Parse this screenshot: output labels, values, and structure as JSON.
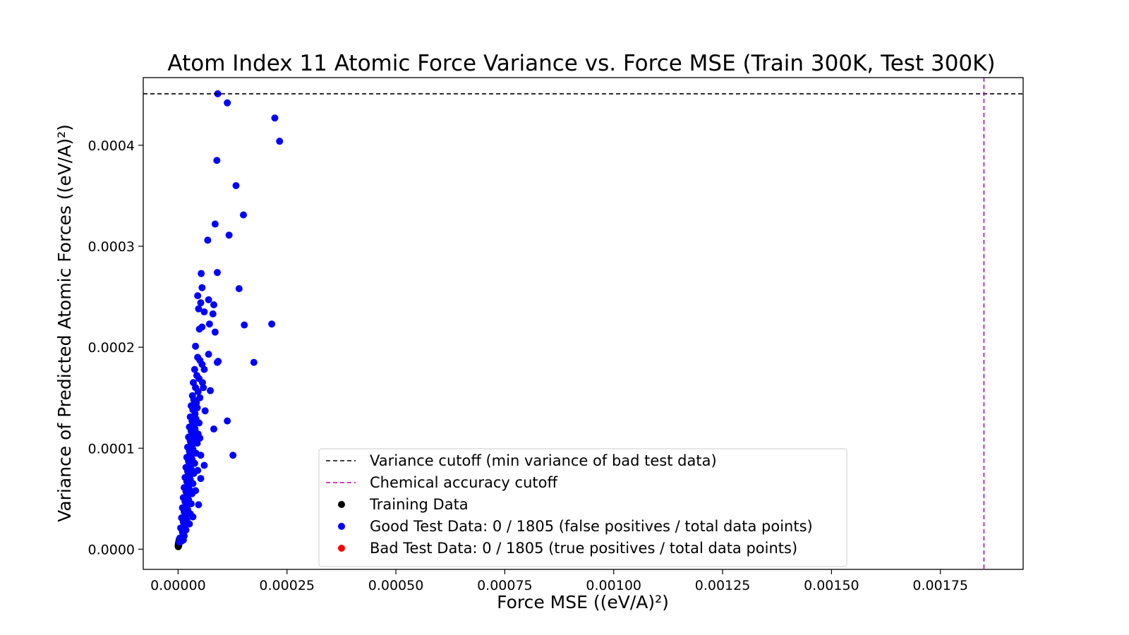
{
  "chart_data": {
    "type": "scatter",
    "title": "Atom Index 11 Atomic Force Variance vs. Force MSE (Train 300K, Test 300K)",
    "xlabel": "Force MSE ((eV/A)²)",
    "ylabel": "Variance of Predicted Atomic Forces ((eV/A)²)",
    "xlim": [
      -8e-05,
      0.00194
    ],
    "ylim": [
      -2e-05,
      0.000467
    ],
    "x_ticks": [
      0.0,
      0.00025,
      0.0005,
      0.00075,
      0.001,
      0.00125,
      0.0015,
      0.00175
    ],
    "x_tick_labels": [
      "0.00000",
      "0.00025",
      "0.00050",
      "0.00075",
      "0.00100",
      "0.00125",
      "0.00150",
      "0.00175"
    ],
    "y_ticks": [
      0.0,
      0.0001,
      0.0002,
      0.0003,
      0.0004
    ],
    "y_tick_labels": [
      "0.0000",
      "0.0001",
      "0.0002",
      "0.0003",
      "0.0004"
    ],
    "grid": false,
    "legend_position": "lower-center",
    "reference_lines": [
      {
        "orientation": "horizontal",
        "value": 0.000451,
        "color": "#000000",
        "style": "dashed",
        "label": "Variance cutoff (min variance of bad test data)"
      },
      {
        "orientation": "vertical",
        "value": 0.00185,
        "color": "#bf00bf",
        "style": "dashed",
        "label": "Chemical accuracy cutoff"
      }
    ],
    "series": [
      {
        "name": "Training Data",
        "color": "#000000",
        "points": [
          [
            2e-07,
            3e-06
          ],
          [
            4e-07,
            4.2e-06
          ],
          [
            6e-07,
            5e-06
          ],
          [
            8e-07,
            3.6e-06
          ],
          [
            1e-06,
            6e-06
          ],
          [
            1.2e-06,
            4.5e-06
          ],
          [
            1.5e-06,
            7e-06
          ],
          [
            1.8e-06,
            5.5e-06
          ],
          [
            2e-06,
            8e-06
          ],
          [
            2.3e-06,
            6.5e-06
          ],
          [
            2.5e-06,
            9e-06
          ],
          [
            2.8e-06,
            7.5e-06
          ],
          [
            3e-06,
            1e-05
          ],
          [
            5e-07,
            2.5e-06
          ],
          [
            1.5e-06,
            3.5e-06
          ],
          [
            3.5e-06,
            8.5e-06
          ]
        ]
      },
      {
        "name": "Good Test Data: 0 / 1805 (false positives / total data points)",
        "color": "#0000ff",
        "points": [
          [
            9.1e-05,
            0.000451
          ],
          [
            0.000113,
            0.000442
          ],
          [
            0.000222,
            0.000427
          ],
          [
            0.000233,
            0.000404
          ],
          [
            8.9e-05,
            0.000385
          ],
          [
            0.000133,
            0.00036
          ],
          [
            0.00015,
            0.000331
          ],
          [
            8.5e-05,
            0.000322
          ],
          [
            0.000117,
            0.000311
          ],
          [
            6.8e-05,
            0.000306
          ],
          [
            9e-05,
            0.000274
          ],
          [
            5.3e-05,
            0.000273
          ],
          [
            0.00014,
            0.000258
          ],
          [
            5.5e-05,
            0.000259
          ],
          [
            4.5e-05,
            0.000251
          ],
          [
            7e-05,
            0.000247
          ],
          [
            8.2e-05,
            0.000242
          ],
          [
            4.7e-05,
            0.000238
          ],
          [
            6e-05,
            0.000235
          ],
          [
            8e-05,
            0.000233
          ],
          [
            5.2e-05,
            0.000244
          ],
          [
            7.2e-05,
            0.000223
          ],
          [
            5.5e-05,
            0.00022
          ],
          [
            4.9e-05,
            0.000218
          ],
          [
            8.5e-05,
            0.000215
          ],
          [
            0.000152,
            0.000222
          ],
          [
            0.000215,
            0.000223
          ],
          [
            4e-05,
            0.000201
          ],
          [
            7e-05,
            0.000193
          ],
          [
            9.2e-05,
            0.000186
          ],
          [
            9e-05,
            0.000185
          ],
          [
            0.000174,
            0.000185
          ],
          [
            4.5e-05,
            0.00019
          ],
          [
            5e-05,
            0.000187
          ],
          [
            5.5e-05,
            0.000183
          ],
          [
            6e-05,
            0.000178
          ],
          [
            3.8e-05,
            0.000178
          ],
          [
            4.3e-05,
            0.000172
          ],
          [
            4.8e-05,
            0.000169
          ],
          [
            5.6e-05,
            0.000165
          ],
          [
            3.5e-05,
            0.000165
          ],
          [
            4e-05,
            0.00016
          ],
          [
            4.6e-05,
            0.000156
          ],
          [
            5.8e-05,
            0.00016
          ],
          [
            7.4e-05,
            0.000157
          ],
          [
            3.3e-05,
            0.000152
          ],
          [
            3.6e-05,
            0.000148
          ],
          [
            4.2e-05,
            0.000145
          ],
          [
            5e-05,
            0.00015
          ],
          [
            3e-05,
            0.000142
          ],
          [
            3.4e-05,
            0.000138
          ],
          [
            3.9e-05,
            0.000134
          ],
          [
            4.4e-05,
            0.00014
          ],
          [
            6.2e-05,
            0.000137
          ],
          [
            2.8e-05,
            0.000131
          ],
          [
            3.2e-05,
            0.000127
          ],
          [
            3.6e-05,
            0.000123
          ],
          [
            4.1e-05,
            0.000129
          ],
          [
            4.8e-05,
            0.000125
          ],
          [
            0.000113,
            0.000127
          ],
          [
            2.6e-05,
            0.000121
          ],
          [
            3e-05,
            0.000117
          ],
          [
            3.4e-05,
            0.000113
          ],
          [
            3.9e-05,
            0.000119
          ],
          [
            4.6e-05,
            0.000114
          ],
          [
            8.2e-05,
            0.000119
          ],
          [
            2.4e-05,
            0.000111
          ],
          [
            2.8e-05,
            0.000107
          ],
          [
            3.2e-05,
            0.000103
          ],
          [
            3.6e-05,
            0.000109
          ],
          [
            4.4e-05,
            0.000105
          ],
          [
            5e-05,
            0.00011
          ],
          [
            2.2e-05,
            0.000101
          ],
          [
            2.6e-05,
            9.7e-05
          ],
          [
            3e-05,
            9.3e-05
          ],
          [
            3.4e-05,
            9.9e-05
          ],
          [
            4.1e-05,
            9.5e-05
          ],
          [
            5.2e-05,
            9.3e-05
          ],
          [
            0.000126,
            9.3e-05
          ],
          [
            2e-05,
            9.1e-05
          ],
          [
            2.4e-05,
            8.7e-05
          ],
          [
            2.8e-05,
            8.3e-05
          ],
          [
            3.2e-05,
            8.9e-05
          ],
          [
            3.8e-05,
            8.5e-05
          ],
          [
            6e-05,
            8.3e-05
          ],
          [
            1.8e-05,
            8.1e-05
          ],
          [
            2.2e-05,
            7.7e-05
          ],
          [
            2.6e-05,
            7.3e-05
          ],
          [
            3e-05,
            7.9e-05
          ],
          [
            3.6e-05,
            7.5e-05
          ],
          [
            4.5e-05,
            7.8e-05
          ],
          [
            1.6e-05,
            7.1e-05
          ],
          [
            2e-05,
            6.7e-05
          ],
          [
            2.4e-05,
            6.3e-05
          ],
          [
            2.8e-05,
            6.9e-05
          ],
          [
            3.4e-05,
            6.5e-05
          ],
          [
            5.2e-05,
            7e-05
          ],
          [
            1.4e-05,
            6.1e-05
          ],
          [
            1.8e-05,
            5.7e-05
          ],
          [
            2.2e-05,
            5.3e-05
          ],
          [
            2.6e-05,
            5.9e-05
          ],
          [
            3.2e-05,
            5.5e-05
          ],
          [
            4e-05,
            5.8e-05
          ],
          [
            1.2e-05,
            5.1e-05
          ],
          [
            1.6e-05,
            4.7e-05
          ],
          [
            2e-05,
            4.3e-05
          ],
          [
            2.4e-05,
            4.9e-05
          ],
          [
            3e-05,
            4.5e-05
          ],
          [
            4.7e-05,
            4.4e-05
          ],
          [
            1e-05,
            4.1e-05
          ],
          [
            1.4e-05,
            3.7e-05
          ],
          [
            1.8e-05,
            3.3e-05
          ],
          [
            2.2e-05,
            3.9e-05
          ],
          [
            2.8e-05,
            3.5e-05
          ],
          [
            3.4e-05,
            3.2e-05
          ],
          [
            8e-06,
            3.1e-05
          ],
          [
            1.2e-05,
            2.7e-05
          ],
          [
            1.6e-05,
            2.3e-05
          ],
          [
            2e-05,
            2.9e-05
          ],
          [
            2.6e-05,
            2.5e-05
          ],
          [
            6e-06,
            2.1e-05
          ],
          [
            1e-05,
            1.7e-05
          ],
          [
            1.4e-05,
            1.3e-05
          ],
          [
            1.8e-05,
            1.9e-05
          ],
          [
            4e-06,
            1.1e-05
          ],
          [
            8e-06,
            8e-06
          ],
          [
            1.2e-05,
            9e-06
          ],
          [
            3e-06,
            7e-06
          ]
        ]
      },
      {
        "name": "Bad Test Data: 0 / 1805 (true positives / total data points)",
        "color": "#ff0000",
        "points": []
      }
    ]
  }
}
